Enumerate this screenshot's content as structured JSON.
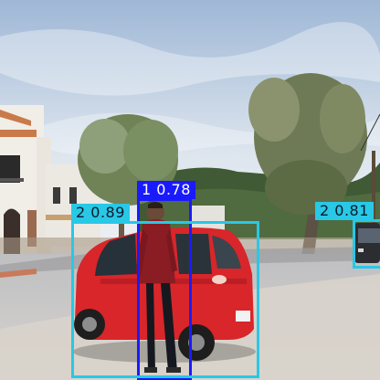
{
  "detections": [
    {
      "label": "1 0.78",
      "class_id": "1",
      "confidence": "0.78",
      "color": "#1a1aff",
      "text_color": "#ffffff"
    },
    {
      "label": "2 0.89",
      "class_id": "2",
      "confidence": "0.89",
      "color": "#28c8e6",
      "text_color": "#0b1a2a"
    },
    {
      "label": "2 0.81",
      "class_id": "2",
      "confidence": "0.81",
      "color": "#28c8e6",
      "text_color": "#0b1a2a"
    }
  ],
  "colors": {
    "sky_top": "#a9bfd9",
    "sky_bottom": "#e8eef4",
    "car_body": "#d8262a",
    "road": "#c9c9cc"
  }
}
